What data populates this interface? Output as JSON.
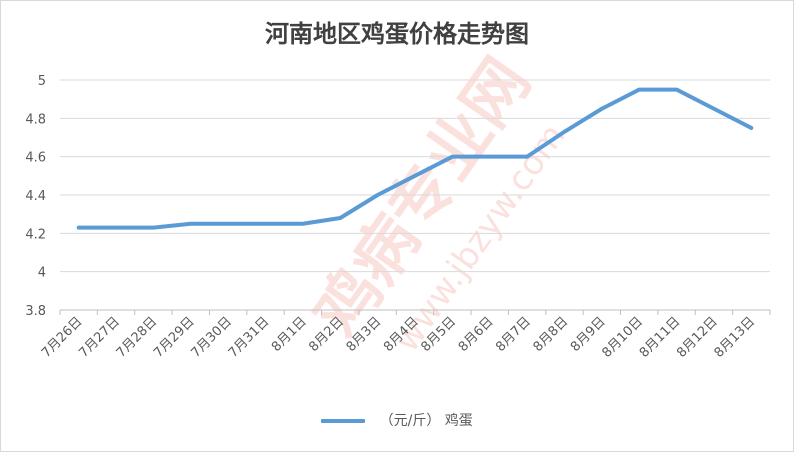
{
  "chart_data": {
    "type": "line",
    "title": "河南地区鸡蛋价格走势图",
    "categories": [
      "7月26日",
      "7月27日",
      "7月28日",
      "7月29日",
      "7月30日",
      "7月31日",
      "8月1日",
      "8月2日",
      "8月3日",
      "8月4日",
      "8月5日",
      "8月6日",
      "8月7日",
      "8月8日",
      "8月9日",
      "8月10日",
      "8月11日",
      "8月12日",
      "8月13日"
    ],
    "series": [
      {
        "name": "（元/斤） 鸡蛋",
        "values": [
          4.23,
          4.23,
          4.23,
          4.25,
          4.25,
          4.25,
          4.25,
          4.28,
          4.4,
          4.5,
          4.6,
          4.6,
          4.6,
          4.73,
          4.85,
          4.95,
          4.95,
          4.85,
          4.75
        ],
        "color": "#5b9bd5"
      }
    ],
    "ylim": [
      3.8,
      5.0
    ],
    "yticks": [
      "3.8",
      "4",
      "4.2",
      "4.4",
      "4.6",
      "4.8",
      "5"
    ],
    "grid": true,
    "legend_position": "bottom"
  },
  "watermark": {
    "text": "鸡病专业网",
    "url": "www.jbzyw.com",
    "color": "#e84a3a"
  }
}
